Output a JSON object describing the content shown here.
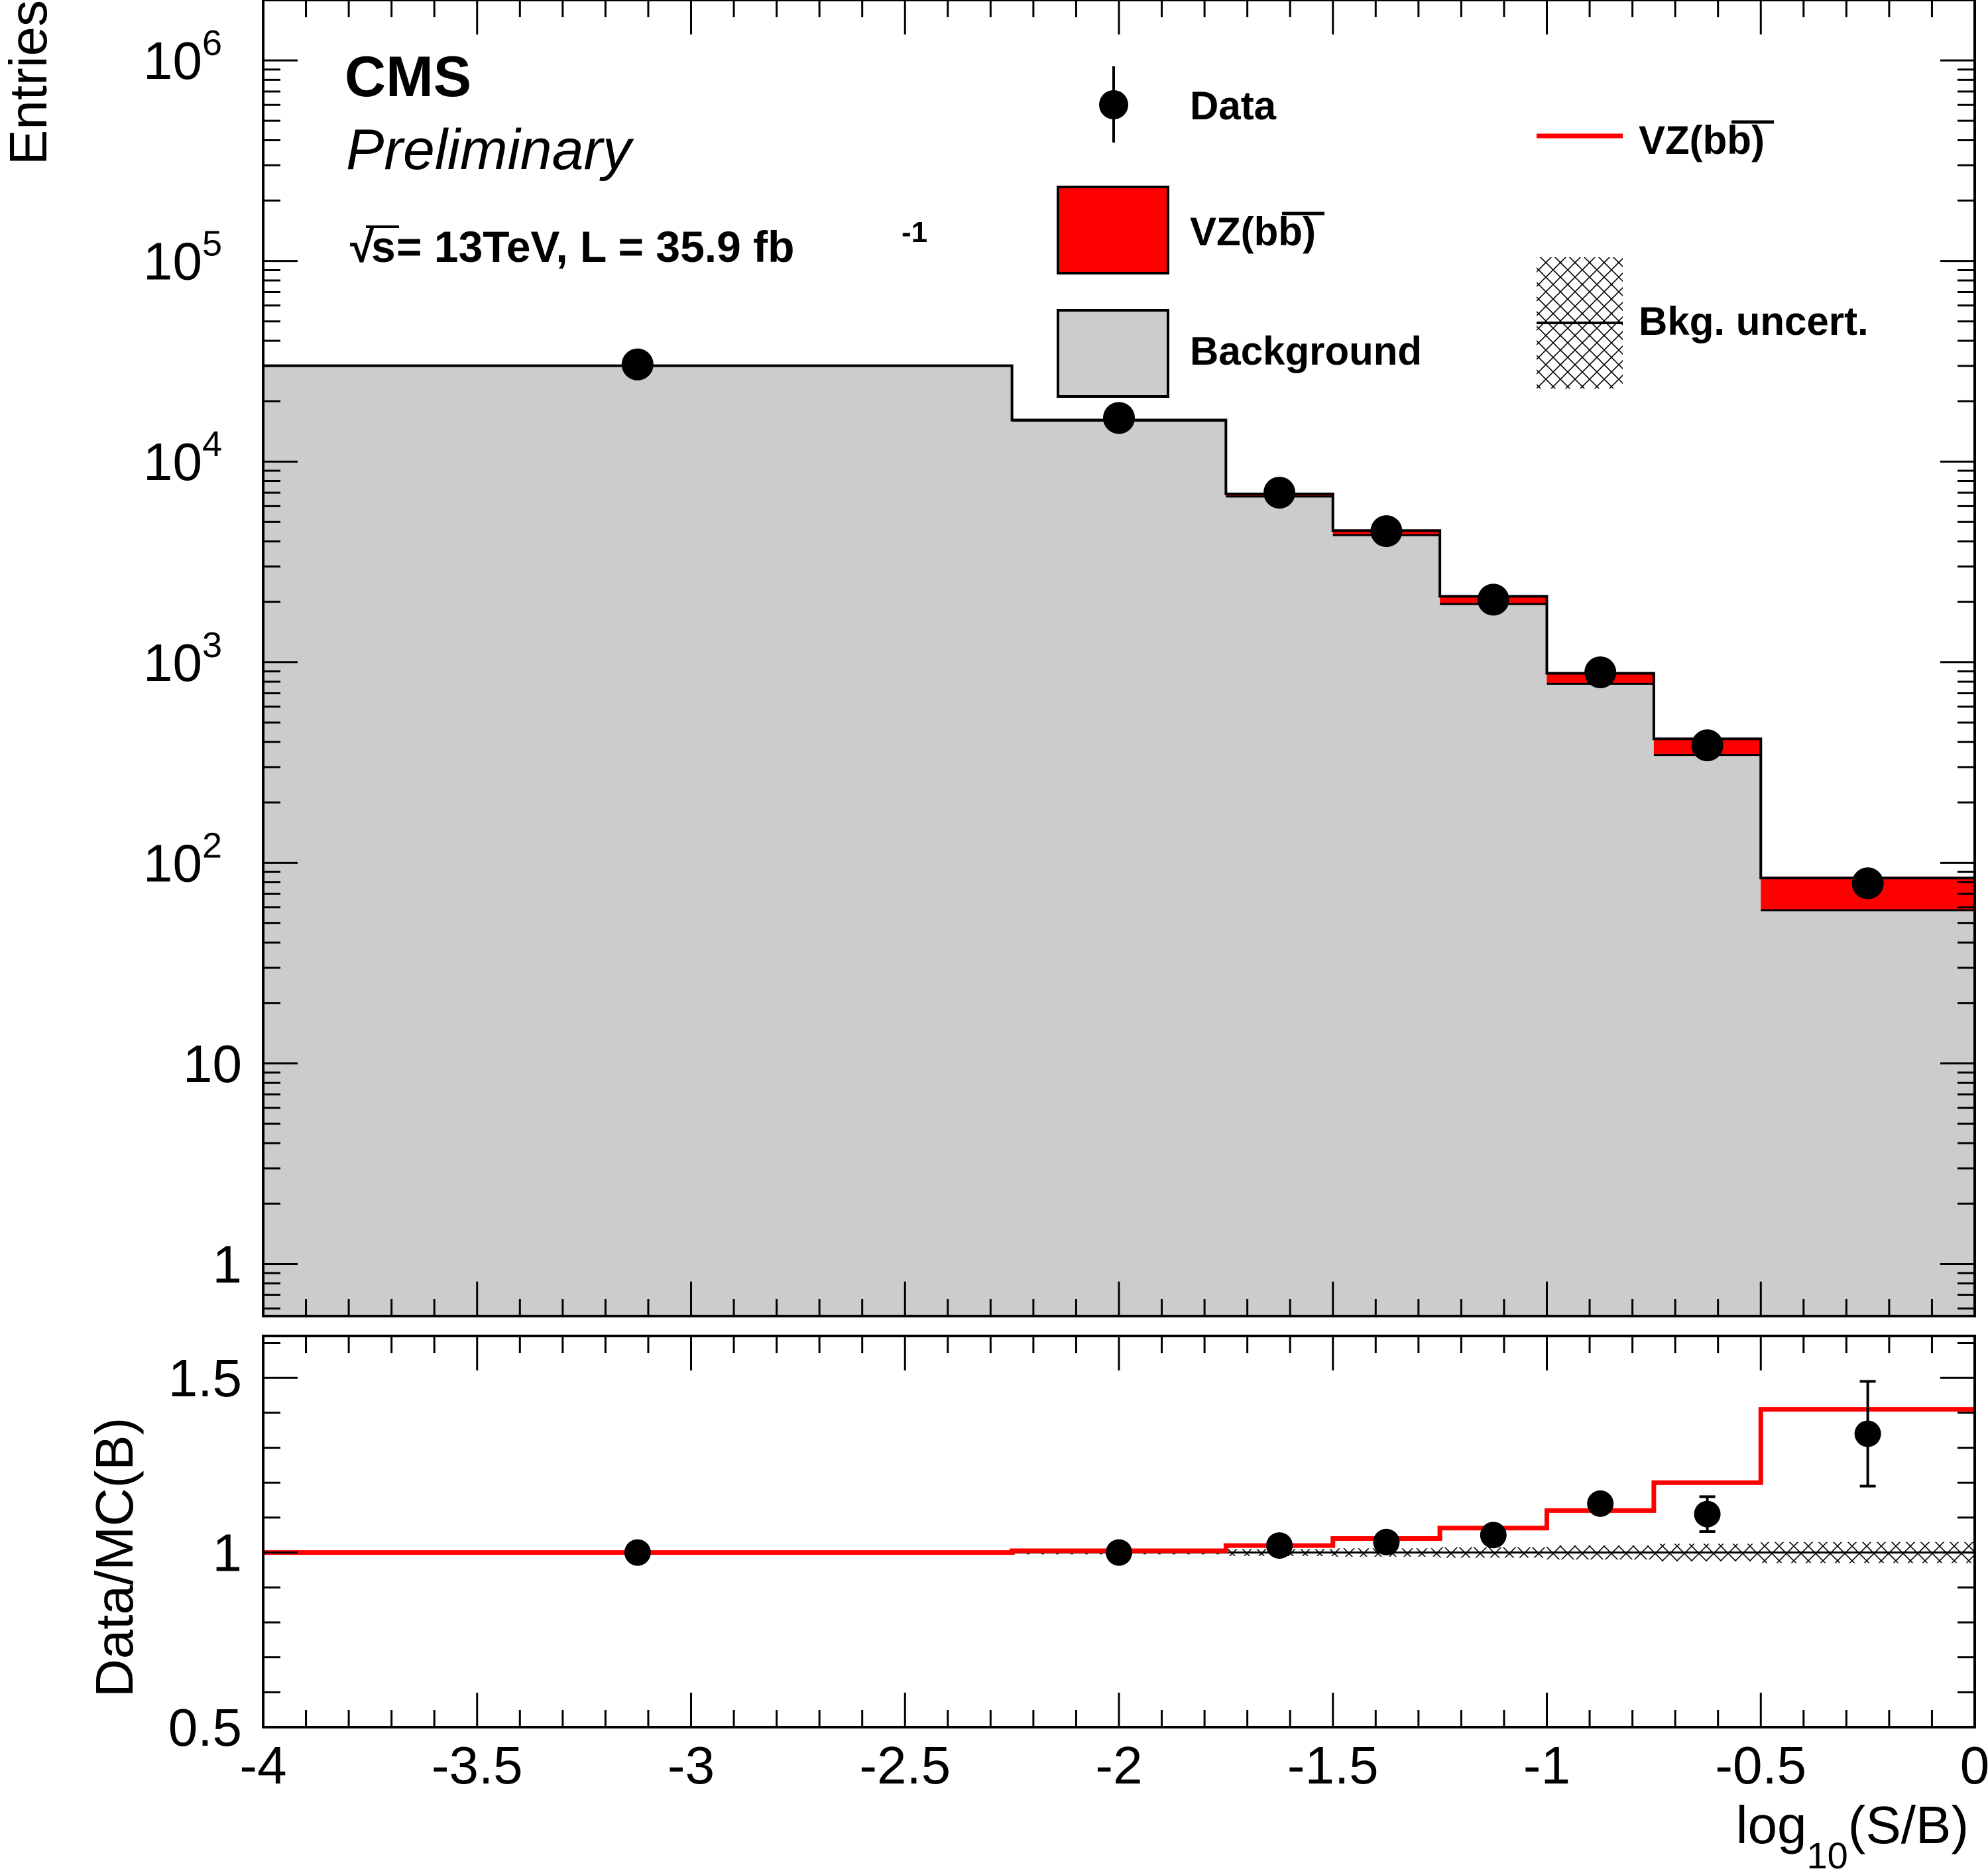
{
  "chart_data": [
    {
      "panel": "main",
      "type": "bar",
      "stacked": true,
      "ylabel": "Entries",
      "yscale": "log",
      "ylim": [
        0.55,
        2000000
      ],
      "xlim": [
        -4,
        0
      ],
      "y_tick_labels": [
        {
          "v": 1,
          "base": "1",
          "exp": ""
        },
        {
          "v": 10,
          "base": "10",
          "exp": ""
        },
        {
          "v": 100,
          "base": "10",
          "exp": "2"
        },
        {
          "v": 1000,
          "base": "10",
          "exp": "3"
        },
        {
          "v": 10000,
          "base": "10",
          "exp": "4"
        },
        {
          "v": 100000,
          "base": "10",
          "exp": "5"
        },
        {
          "v": 1000000,
          "base": "10",
          "exp": "6"
        }
      ],
      "bin_edges": [
        -4,
        -2.25,
        -1.75,
        -1.5,
        -1.25,
        -1.0,
        -0.75,
        -0.5,
        0
      ],
      "series": [
        {
          "name": "Background",
          "color": "#cccccc",
          "values": [
            30000,
            16000,
            6700,
            4300,
            1950,
            780,
            345,
            58
          ]
        },
        {
          "name": "VZ(bb)",
          "color": "#ff0000",
          "values": [
            50,
            120,
            200,
            230,
            180,
            100,
            70,
            26
          ]
        }
      ],
      "data": {
        "name": "Data",
        "x": [
          -3.125,
          -2.0,
          -1.625,
          -1.375,
          -1.125,
          -0.875,
          -0.625,
          -0.25
        ],
        "y": [
          30500,
          16500,
          7000,
          4500,
          2050,
          890,
          385,
          79
        ],
        "yerr": [
          175,
          128,
          84,
          67,
          45,
          30,
          20,
          9
        ]
      }
    },
    {
      "panel": "ratio",
      "type": "line",
      "xlabel": "log10(S/B)",
      "ylabel": "Data/MC(B)",
      "ylim": [
        0.5,
        1.62
      ],
      "xlim": [
        -4,
        0
      ],
      "x_ticks": [
        -4,
        -3.5,
        -3,
        -2.5,
        -2,
        -1.5,
        -1,
        -0.5,
        0
      ],
      "x_tick_labels": [
        "-4",
        "-3.5",
        "-3",
        "-2.5",
        "-2",
        "-1.5",
        "-1",
        "-0.5",
        "0"
      ],
      "y_ticks": [
        0.5,
        1,
        1.5
      ],
      "y_tick_labels": [
        "0.5",
        "1",
        "1.5"
      ],
      "bin_edges": [
        -4,
        -2.25,
        -1.75,
        -1.5,
        -1.25,
        -1.0,
        -0.75,
        -0.5,
        0
      ],
      "signal_ratio": {
        "name": "VZ(bb)",
        "color": "#ff0000",
        "values": [
          1.0,
          1.005,
          1.02,
          1.04,
          1.07,
          1.12,
          1.2,
          1.41
        ]
      },
      "bkg_uncert": {
        "name": "Bkg. uncert.",
        "halfwidth": [
          0.005,
          0.005,
          0.01,
          0.012,
          0.015,
          0.02,
          0.025,
          0.03
        ]
      },
      "data": {
        "x": [
          -3.125,
          -2.0,
          -1.625,
          -1.375,
          -1.125,
          -0.875,
          -0.625,
          -0.25
        ],
        "y": [
          1.0,
          1.0,
          1.02,
          1.03,
          1.05,
          1.14,
          1.11,
          1.34
        ],
        "yerr": [
          0.005,
          0.008,
          0.012,
          0.015,
          0.02,
          0.02,
          0.05,
          0.15
        ]
      }
    }
  ],
  "labels": {
    "ylabel_main": "Entries",
    "ylabel_ratio": "Data/MC(B)",
    "xlabel_base": "log",
    "xlabel_sub": "10",
    "xlabel_rest": "(S/B)",
    "cms": "CMS",
    "preliminary": "Preliminary",
    "sqrt": "√",
    "lumi_s": "s",
    "lumi_text": " =  13TeV, L = 35.9 fb",
    "lumi_sup": "-1"
  },
  "legend": {
    "data": "Data",
    "vz_fill": "VZ(bb)",
    "background": "Background",
    "vz_line": "VZ(bb)",
    "bkg_uncert": "Bkg. uncert."
  }
}
